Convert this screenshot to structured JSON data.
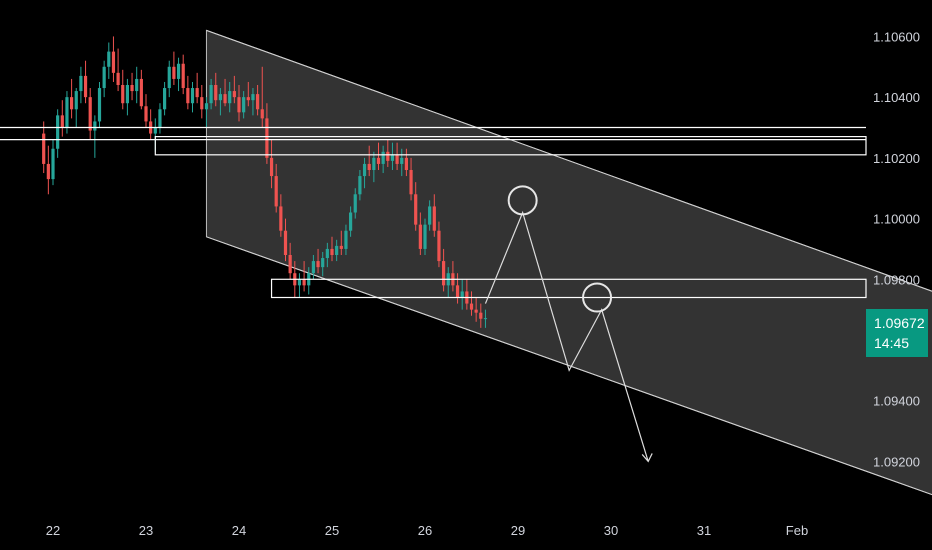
{
  "colors": {
    "up": "#26a69a",
    "down": "#ef5350",
    "channel_fill": "#ffffff",
    "accent": "#089981"
  },
  "current_price": {
    "value": "1.09672",
    "countdown": "14:45"
  },
  "chart_data": {
    "type": "candlestick",
    "title": "",
    "xlabel": "",
    "ylabel": "",
    "ylim": [
      1.0904,
      1.1072
    ],
    "y_ticks": [
      "1.10600",
      "1.10400",
      "1.10200",
      "1.10000",
      "1.09800",
      "1.09400",
      "1.09200"
    ],
    "x_ticks": [
      "22",
      "23",
      "24",
      "25",
      "26",
      "29",
      "30",
      "31",
      "Feb"
    ],
    "candles": [
      [
        21.9,
        1.1028,
        1.1032,
        1.1015,
        1.1018
      ],
      [
        21.95,
        1.1018,
        1.1024,
        1.1008,
        1.1013
      ],
      [
        22.0,
        1.1013,
        1.1026,
        1.1011,
        1.1023
      ],
      [
        22.05,
        1.1023,
        1.1036,
        1.102,
        1.1034
      ],
      [
        22.1,
        1.1034,
        1.1039,
        1.1027,
        1.103
      ],
      [
        22.15,
        1.103,
        1.1042,
        1.1028,
        1.104
      ],
      [
        22.2,
        1.104,
        1.1046,
        1.1033,
        1.1036
      ],
      [
        22.25,
        1.1036,
        1.1043,
        1.103,
        1.1042
      ],
      [
        22.3,
        1.1042,
        1.105,
        1.1038,
        1.1047
      ],
      [
        22.35,
        1.1047,
        1.1052,
        1.1038,
        1.104
      ],
      [
        22.4,
        1.104,
        1.1043,
        1.1026,
        1.1029
      ],
      [
        22.45,
        1.1029,
        1.1034,
        1.102,
        1.1032
      ],
      [
        22.5,
        1.1032,
        1.1045,
        1.103,
        1.1043
      ],
      [
        22.55,
        1.1043,
        1.1052,
        1.104,
        1.105
      ],
      [
        22.6,
        1.105,
        1.1058,
        1.1046,
        1.1055
      ],
      [
        22.65,
        1.1055,
        1.106,
        1.1045,
        1.1048
      ],
      [
        22.7,
        1.1048,
        1.1056,
        1.1042,
        1.1044
      ],
      [
        22.75,
        1.1044,
        1.1049,
        1.1036,
        1.1038
      ],
      [
        22.8,
        1.1038,
        1.1046,
        1.1034,
        1.1044
      ],
      [
        22.85,
        1.1044,
        1.1048,
        1.1039,
        1.1042
      ],
      [
        22.9,
        1.1042,
        1.105,
        1.1038,
        1.1046
      ],
      [
        22.95,
        1.1046,
        1.1049,
        1.1036,
        1.1037
      ],
      [
        23.0,
        1.1037,
        1.1041,
        1.103,
        1.1032
      ],
      [
        23.05,
        1.1032,
        1.1036,
        1.1026,
        1.1028
      ],
      [
        23.1,
        1.1028,
        1.1033,
        1.1022,
        1.103
      ],
      [
        23.15,
        1.103,
        1.1038,
        1.1028,
        1.1036
      ],
      [
        23.2,
        1.1036,
        1.1045,
        1.1034,
        1.1043
      ],
      [
        23.25,
        1.1043,
        1.1052,
        1.104,
        1.105
      ],
      [
        23.3,
        1.105,
        1.1055,
        1.1044,
        1.1046
      ],
      [
        23.35,
        1.1046,
        1.1053,
        1.1042,
        1.1051
      ],
      [
        23.4,
        1.1051,
        1.1054,
        1.1041,
        1.1043
      ],
      [
        23.45,
        1.1043,
        1.1047,
        1.1036,
        1.1038
      ],
      [
        23.5,
        1.1038,
        1.1045,
        1.1035,
        1.1043
      ],
      [
        23.55,
        1.1043,
        1.1048,
        1.1038,
        1.104
      ],
      [
        23.6,
        1.104,
        1.1044,
        1.1033,
        1.1036
      ],
      [
        23.65,
        1.1036,
        1.104,
        1.103,
        1.1038
      ],
      [
        23.7,
        1.1038,
        1.1046,
        1.1036,
        1.1044
      ],
      [
        23.75,
        1.1044,
        1.1048,
        1.1037,
        1.1039
      ],
      [
        23.8,
        1.1039,
        1.1043,
        1.1034,
        1.1041
      ],
      [
        23.85,
        1.1041,
        1.1046,
        1.1037,
        1.1038
      ],
      [
        23.9,
        1.1038,
        1.1045,
        1.1035,
        1.1042
      ],
      [
        23.95,
        1.1042,
        1.1047,
        1.1038,
        1.104
      ],
      [
        24.0,
        1.104,
        1.1044,
        1.1032,
        1.1035
      ],
      [
        24.05,
        1.1035,
        1.1042,
        1.1033,
        1.104
      ],
      [
        24.1,
        1.104,
        1.1045,
        1.1037,
        1.1039
      ],
      [
        24.15,
        1.1039,
        1.1043,
        1.1034,
        1.1041
      ],
      [
        24.2,
        1.1041,
        1.1044,
        1.1034,
        1.1036
      ],
      [
        24.25,
        1.1036,
        1.105,
        1.103,
        1.1033
      ],
      [
        24.3,
        1.1033,
        1.1038,
        1.1018,
        1.102
      ],
      [
        24.35,
        1.102,
        1.1026,
        1.101,
        1.1014
      ],
      [
        24.4,
        1.1014,
        1.1018,
        1.1002,
        1.1004
      ],
      [
        24.45,
        1.1004,
        1.1008,
        1.0994,
        1.0996
      ],
      [
        24.5,
        1.0996,
        1.1,
        1.0986,
        1.0988
      ],
      [
        24.55,
        1.0988,
        1.0992,
        1.098,
        1.0982
      ],
      [
        24.6,
        1.0982,
        1.0986,
        1.0974,
        1.0978
      ],
      [
        24.65,
        1.0978,
        1.0982,
        1.0974,
        1.098
      ],
      [
        24.7,
        1.098,
        1.0986,
        1.0976,
        1.0978
      ],
      [
        24.75,
        1.0978,
        1.0984,
        1.0975,
        1.0982
      ],
      [
        24.8,
        1.0982,
        1.0988,
        1.098,
        1.0986
      ],
      [
        24.85,
        1.0986,
        1.099,
        1.0982,
        1.0984
      ],
      [
        24.9,
        1.0984,
        1.0989,
        1.0981,
        1.0987
      ],
      [
        24.95,
        1.0987,
        1.0992,
        1.0984,
        1.099
      ],
      [
        25.0,
        1.099,
        1.0994,
        1.0986,
        1.0988
      ],
      [
        25.05,
        1.0988,
        1.0993,
        1.0986,
        1.0991
      ],
      [
        25.1,
        1.0991,
        1.0996,
        1.0988,
        1.099
      ],
      [
        25.15,
        1.099,
        1.0998,
        1.0988,
        1.0996
      ],
      [
        25.2,
        1.0996,
        1.1004,
        1.0994,
        1.1002
      ],
      [
        25.25,
        1.1002,
        1.101,
        1.1,
        1.1008
      ],
      [
        25.3,
        1.1008,
        1.1016,
        1.1006,
        1.1014
      ],
      [
        25.35,
        1.1014,
        1.102,
        1.101,
        1.1018
      ],
      [
        25.4,
        1.1018,
        1.1024,
        1.1014,
        1.1016
      ],
      [
        25.45,
        1.1016,
        1.1022,
        1.1012,
        1.102
      ],
      [
        25.5,
        1.102,
        1.1025,
        1.1016,
        1.1018
      ],
      [
        25.55,
        1.1018,
        1.1024,
        1.1015,
        1.1022
      ],
      [
        25.6,
        1.1022,
        1.1026,
        1.1017,
        1.1019
      ],
      [
        25.65,
        1.1019,
        1.1025,
        1.1016,
        1.1021
      ],
      [
        25.7,
        1.1021,
        1.1025,
        1.1016,
        1.1018
      ],
      [
        25.75,
        1.1018,
        1.1023,
        1.1014,
        1.102
      ],
      [
        25.8,
        1.102,
        1.1023,
        1.1014,
        1.1016
      ],
      [
        25.85,
        1.1016,
        1.102,
        1.1006,
        1.1008
      ],
      [
        25.9,
        1.1008,
        1.1012,
        1.0996,
        1.0998
      ],
      [
        25.95,
        1.0998,
        1.1002,
        1.0988,
        1.099
      ],
      [
        26.0,
        1.099,
        1.1,
        1.0988,
        1.0998
      ],
      [
        26.05,
        1.0998,
        1.1006,
        1.0996,
        1.1004
      ],
      [
        26.1,
        1.1004,
        1.1008,
        1.0994,
        1.0996
      ],
      [
        26.15,
        1.0996,
        1.0999,
        1.0984,
        1.0986
      ],
      [
        26.2,
        1.0986,
        1.099,
        1.0976,
        1.0978
      ],
      [
        26.25,
        1.0978,
        1.0984,
        1.0974,
        1.0982
      ],
      [
        26.3,
        1.0982,
        1.0986,
        1.0976,
        1.0978
      ],
      [
        26.35,
        1.0978,
        1.0982,
        1.0972,
        1.0974
      ],
      [
        26.4,
        1.0974,
        1.098,
        1.097,
        1.0976
      ],
      [
        26.45,
        1.0976,
        1.098,
        1.097,
        1.0972
      ],
      [
        26.5,
        1.0972,
        1.0976,
        1.0968,
        1.097
      ],
      [
        26.55,
        1.097,
        1.0974,
        1.0966,
        1.0969
      ],
      [
        26.6,
        1.0969,
        1.0972,
        1.0964,
        1.0967
      ],
      [
        26.65,
        1.0967,
        1.097,
        1.0964,
        1.09672
      ]
    ],
    "channel": {
      "upper": [
        [
          23.65,
          1.1062
        ],
        [
          31.55,
          1.0975
        ]
      ],
      "lower": [
        [
          23.65,
          1.0994
        ],
        [
          31.55,
          1.0908
        ]
      ]
    },
    "horizontal_lines": [
      1.103,
      1.1026
    ],
    "zones": [
      {
        "x_start": 23.1,
        "x_end": 33.0,
        "y_top": 1.1027,
        "y_bottom": 1.1021
      },
      {
        "x_start": 24.35,
        "x_end": 33.0,
        "y_top": 1.098,
        "y_bottom": 1.0974
      }
    ],
    "projection": [
      [
        26.65,
        1.0972
      ],
      [
        27.05,
        1.1002
      ],
      [
        27.55,
        1.095
      ],
      [
        27.9,
        1.097
      ],
      [
        28.4,
        1.092
      ]
    ],
    "circles": [
      [
        27.05,
        1.1006
      ],
      [
        27.85,
        1.0974
      ]
    ]
  }
}
